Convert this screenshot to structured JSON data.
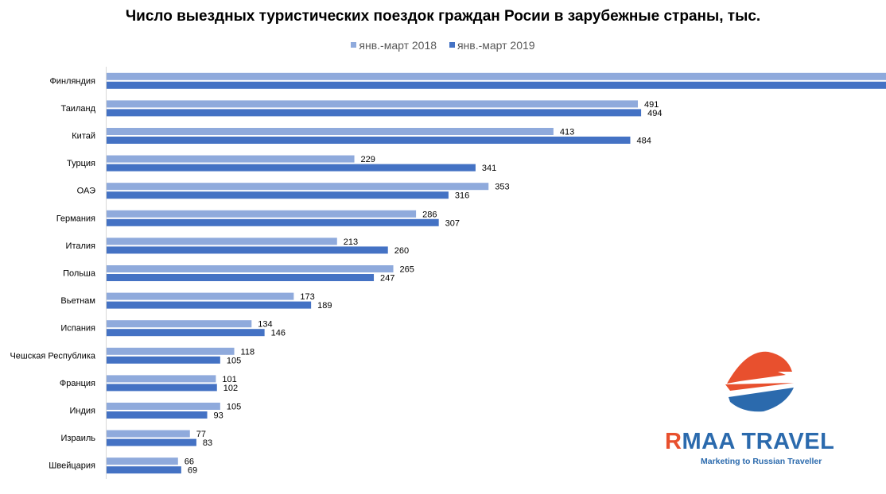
{
  "chart_data": {
    "type": "bar",
    "orientation": "horizontal",
    "title": "Число выездных туристических поездок граждан Росии в зарубежные страны, тыс.",
    "categories": [
      "Финляндия",
      "Таиланд",
      "Китай",
      "Турция",
      "ОАЭ",
      "Германия",
      "Италия",
      "Польша",
      "Вьетнам",
      "Испания",
      "Чешская Республика",
      "Франция",
      "Индия",
      "Израиль",
      "Швейцария"
    ],
    "series": [
      {
        "name": "янв.-март 2018",
        "color": "#8faadc",
        "values": [
          737,
          491,
          413,
          229,
          353,
          286,
          213,
          265,
          173,
          134,
          118,
          101,
          105,
          77,
          66
        ]
      },
      {
        "name": "янв.-март 2019",
        "color": "#4472c4",
        "values": [
          731,
          494,
          484,
          341,
          316,
          307,
          260,
          247,
          189,
          146,
          105,
          102,
          93,
          83,
          69
        ]
      }
    ],
    "xlim": [
      0,
      760
    ],
    "grid": false,
    "legend_position": "top"
  },
  "logo": {
    "brand_first_letter": "R",
    "brand_rest": "MAA TRAVEL",
    "tagline": "Marketing to Russian Traveller",
    "colors": {
      "orange": "#e8502e",
      "blue": "#2b6aad"
    }
  }
}
